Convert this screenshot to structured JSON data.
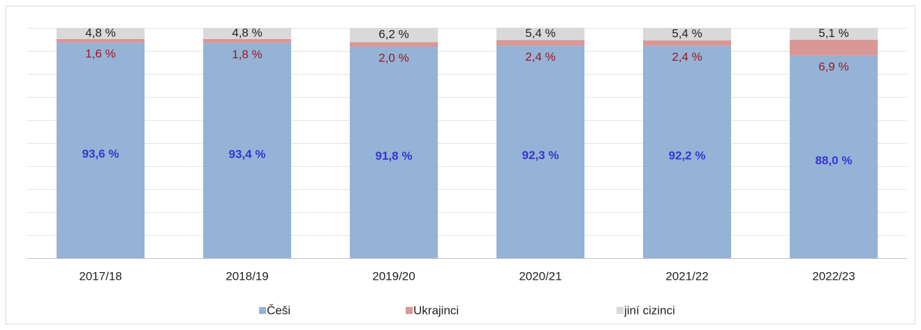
{
  "chart_data": {
    "type": "stacked_bar",
    "categories": [
      "2017/18",
      "2018/19",
      "2019/20",
      "2020/21",
      "2021/22",
      "2022/23"
    ],
    "series": [
      {
        "name": "Češi",
        "color": "#95b3d7",
        "label_color": "#3535d0",
        "values": [
          93.6,
          93.4,
          91.8,
          92.3,
          92.2,
          88.0
        ],
        "value_labels": [
          "93,6 %",
          "93,4 %",
          "91,8 %",
          "92,3 %",
          "92,2 %",
          "88,0 %"
        ]
      },
      {
        "name": "Ukrajinci",
        "color": "#d99795",
        "label_color": "#a01420",
        "values": [
          1.6,
          1.8,
          2.0,
          2.4,
          2.4,
          6.9
        ],
        "value_labels": [
          "1,6 %",
          "1,8 %",
          "2,0 %",
          "2,4 %",
          "2,4 %",
          "6,9 %"
        ]
      },
      {
        "name": "jiní cizinci",
        "color": "#d9d9d9",
        "label_color": "#222222",
        "values": [
          4.8,
          4.8,
          6.2,
          5.4,
          5.4,
          5.1
        ],
        "value_labels": [
          "4,8 %",
          "4,8 %",
          "6,2 %",
          "5,4 %",
          "5,4 %",
          "5,1 %"
        ]
      }
    ],
    "ylim": [
      0,
      100
    ],
    "yticks": [
      0,
      10,
      20,
      30,
      40,
      50,
      60,
      70,
      80,
      90,
      100
    ],
    "grid": true,
    "legend": "bottom"
  }
}
